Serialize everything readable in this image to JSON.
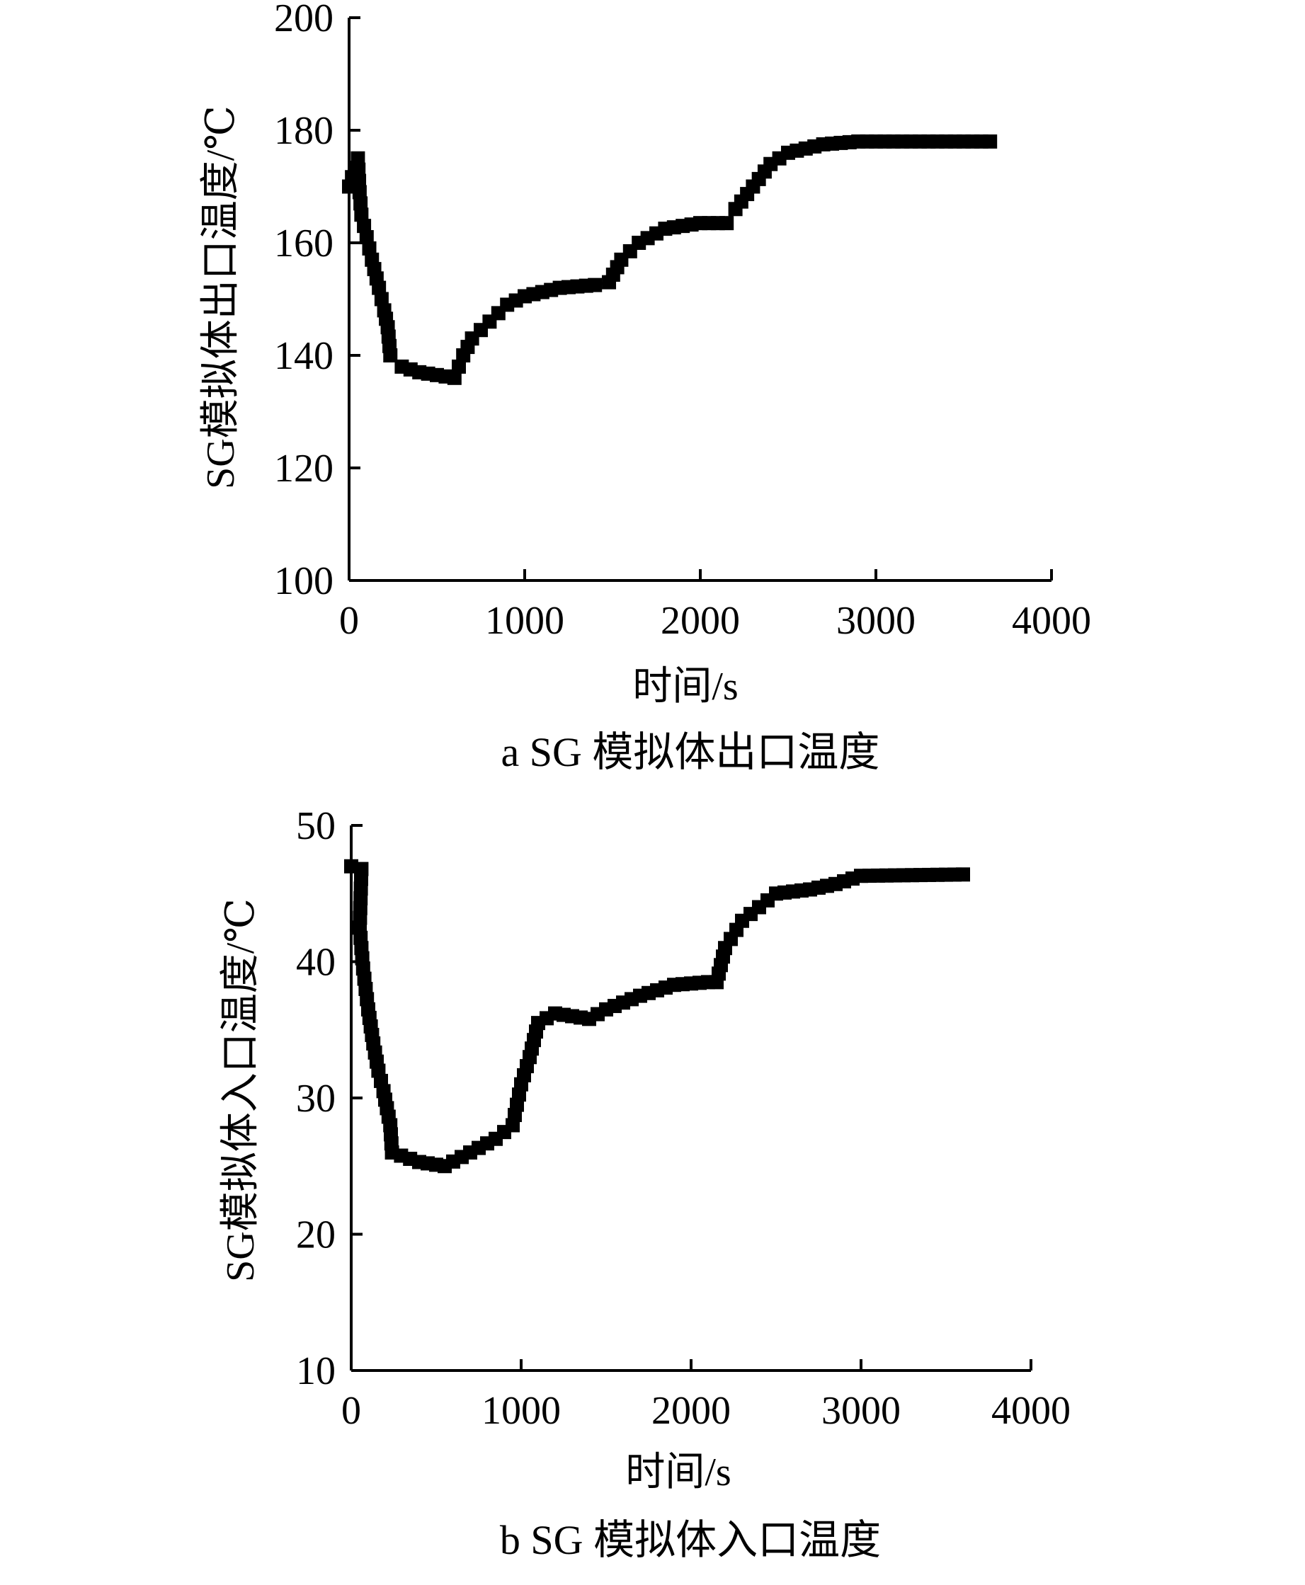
{
  "chart_data": [
    {
      "type": "line",
      "id": "a",
      "title": "a  SG 模拟体出口温度",
      "xlabel": "时间/s",
      "ylabel": "SG模拟体出口温度/℃",
      "xlim": [
        0,
        4000
      ],
      "ylim": [
        100,
        200
      ],
      "xticks": [
        "0",
        "1000",
        "2000",
        "3000",
        "4000"
      ],
      "yticks": [
        "100",
        "120",
        "140",
        "160",
        "180",
        "200"
      ],
      "grid": false,
      "marker": "square",
      "color": "#000000",
      "x": [
        0,
        50,
        60,
        70,
        100,
        130,
        170,
        200,
        220,
        235,
        300,
        400,
        500,
        600,
        650,
        700,
        800,
        900,
        1000,
        1200,
        1400,
        1480,
        1550,
        1650,
        1800,
        2000,
        2150,
        2200,
        2300,
        2400,
        2500,
        2700,
        2900,
        3200,
        3650
      ],
      "y": [
        170,
        175,
        169,
        165,
        161,
        157,
        152,
        148,
        145,
        140,
        138,
        137,
        136.5,
        136,
        140,
        143,
        146,
        149,
        150.5,
        152,
        152.5,
        153,
        157,
        160,
        162.5,
        163.5,
        163.5,
        166,
        170,
        174,
        176,
        177.5,
        178,
        178,
        178
      ]
    },
    {
      "type": "line",
      "id": "b",
      "title": "b   SG 模拟体入口温度",
      "xlabel": "时间/s",
      "ylabel": "SG模拟体入口温度/℃",
      "xlim": [
        0,
        4000
      ],
      "ylim": [
        10,
        50
      ],
      "xticks": [
        "0",
        "1000",
        "2000",
        "3000",
        "4000"
      ],
      "yticks": [
        "10",
        "20",
        "30",
        "40",
        "50"
      ],
      "grid": false,
      "marker": "square",
      "color": "#000000",
      "x": [
        0,
        60,
        50,
        70,
        100,
        130,
        160,
        190,
        230,
        240,
        400,
        550,
        700,
        850,
        950,
        1000,
        1050,
        1100,
        1200,
        1300,
        1400,
        1500,
        1700,
        1900,
        2100,
        2150,
        2200,
        2300,
        2400,
        2500,
        2700,
        2850,
        3000,
        3600
      ],
      "y": [
        47,
        46.8,
        42.5,
        39.5,
        36.5,
        34,
        32,
        30.5,
        28,
        26,
        25.3,
        25,
        26,
        27,
        28,
        31,
        33,
        35.5,
        36.2,
        36,
        35.8,
        36.5,
        37.5,
        38.3,
        38.5,
        38.5,
        41,
        43,
        44,
        45,
        45.3,
        45.7,
        46.3,
        46.4
      ]
    }
  ]
}
